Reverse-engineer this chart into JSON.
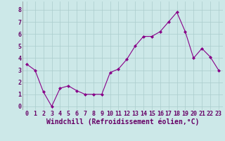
{
  "x": [
    0,
    1,
    2,
    3,
    4,
    5,
    6,
    7,
    8,
    9,
    10,
    11,
    12,
    13,
    14,
    15,
    16,
    17,
    18,
    19,
    20,
    21,
    22,
    23
  ],
  "y": [
    3.5,
    3.0,
    1.2,
    0.0,
    1.5,
    1.7,
    1.3,
    1.0,
    1.0,
    1.0,
    2.8,
    3.1,
    3.9,
    5.0,
    5.8,
    5.8,
    6.2,
    7.0,
    7.8,
    6.2,
    4.0,
    4.8,
    4.1,
    3.0
  ],
  "line_color": "#880088",
  "marker": "D",
  "marker_size": 2.0,
  "xlim": [
    -0.5,
    23.5
  ],
  "ylim": [
    -0.3,
    8.7
  ],
  "yticks": [
    0,
    1,
    2,
    3,
    4,
    5,
    6,
    7,
    8
  ],
  "xticks": [
    0,
    1,
    2,
    3,
    4,
    5,
    6,
    7,
    8,
    9,
    10,
    11,
    12,
    13,
    14,
    15,
    16,
    17,
    18,
    19,
    20,
    21,
    22,
    23
  ],
  "bg_color": "#cce8e8",
  "grid_color": "#aacccc",
  "xlabel": "Windchill (Refroidissement éolien,°C)",
  "xlabel_fontsize": 7,
  "tick_fontsize": 6,
  "tick_color": "#660066",
  "xlabel_color": "#660066"
}
